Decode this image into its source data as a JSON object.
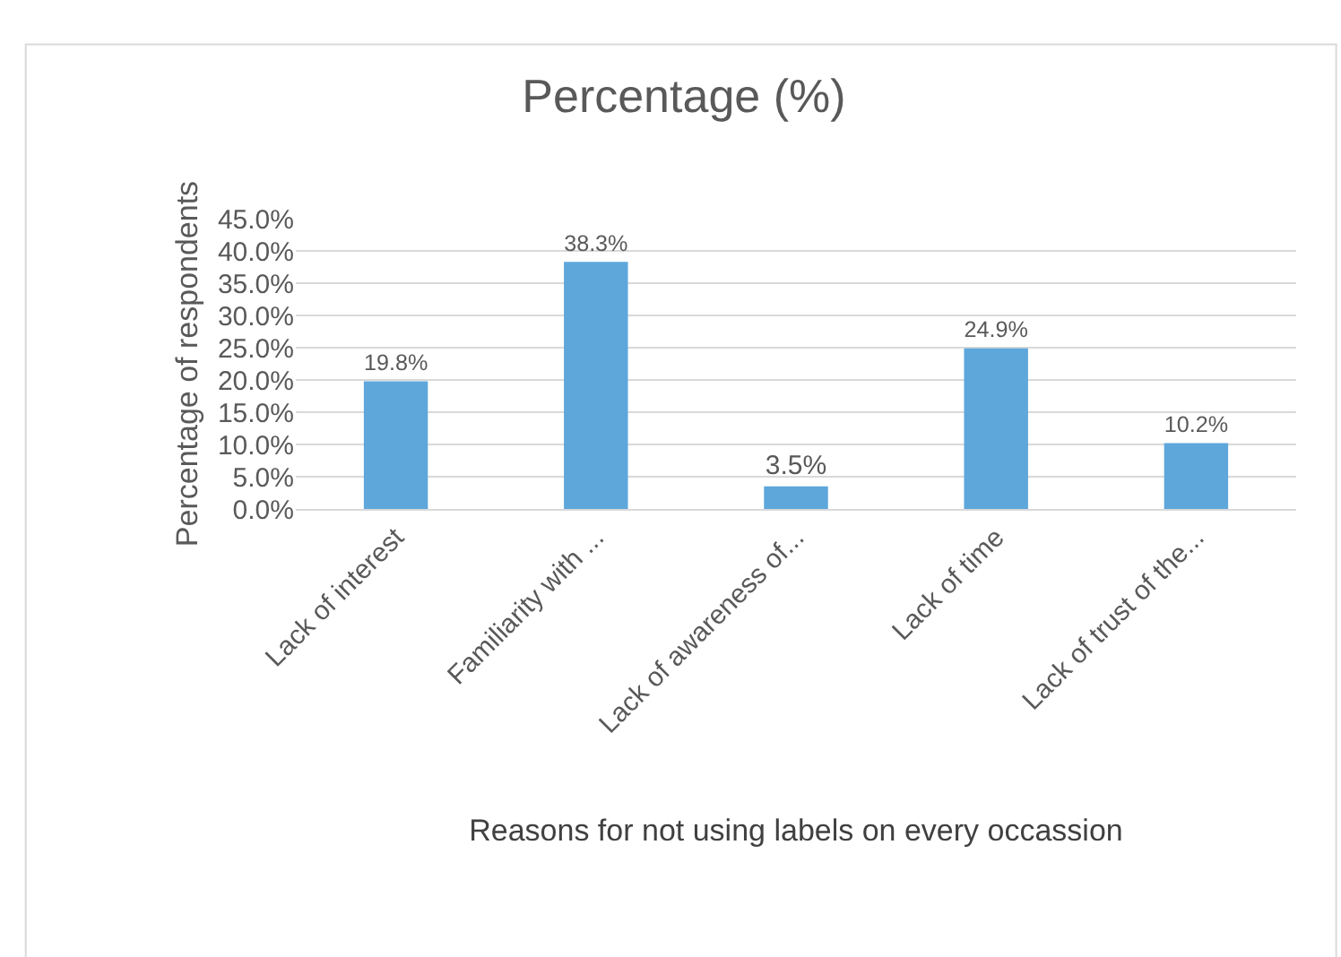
{
  "chart_data": {
    "type": "bar",
    "title": "Percentage (%)",
    "xlabel": "Reasons for not using labels on every occassion",
    "ylabel": "Percentage of respondents",
    "categories": [
      "Lack of interest",
      "Familiarity with ...",
      "Lack of awareness of...",
      "Lack of time",
      "Lack of trust of the..."
    ],
    "values": [
      19.8,
      38.3,
      3.5,
      24.9,
      10.2
    ],
    "value_labels": [
      "19.8%",
      "38.3%",
      "3.5%",
      "24.9%",
      "10.2%"
    ],
    "color": "#5ea7db",
    "ylim": [
      0,
      45
    ],
    "yticks": [
      {
        "value": 0,
        "label": "0.0%"
      },
      {
        "value": 5,
        "label": "5.0%"
      },
      {
        "value": 10,
        "label": "10.0%"
      },
      {
        "value": 15,
        "label": "15.0%"
      },
      {
        "value": 20,
        "label": "20.0%"
      },
      {
        "value": 25,
        "label": "25.0%"
      },
      {
        "value": 30,
        "label": "30.0%"
      },
      {
        "value": 35,
        "label": "35.0%"
      },
      {
        "value": 40,
        "label": "40.0%"
      },
      {
        "value": 45,
        "label": "45.0%"
      }
    ],
    "grid": "y",
    "legend": false
  }
}
